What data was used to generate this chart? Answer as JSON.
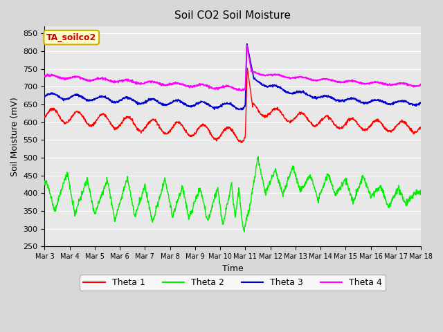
{
  "title": "Soil CO2 Soil Moisture",
  "xlabel": "Time",
  "ylabel": "Soil Moisture (mV)",
  "ylim": [
    250,
    870
  ],
  "yticks": [
    250,
    300,
    350,
    400,
    450,
    500,
    550,
    600,
    650,
    700,
    750,
    800,
    850
  ],
  "x_labels": [
    "Mar 3",
    "Mar 4",
    "Mar 5",
    "Mar 6",
    "Mar 7",
    "Mar 8",
    "Mar 9",
    "Mar 10",
    "Mar 11",
    "Mar 12",
    "Mar 13",
    "Mar 14",
    "Mar 15",
    "Mar 16",
    "Mar 17",
    "Mar 18"
  ],
  "annotation_text": "TA_soilco2",
  "annotation_bg": "#ffffcc",
  "annotation_border": "#ccaa00",
  "annotation_text_color": "#cc0000",
  "colors": {
    "theta1": "#ff0000",
    "theta2": "#00ee00",
    "theta3": "#0000cc",
    "theta4": "#ff00ff"
  },
  "bg_color": "#e8e8e8",
  "grid_color": "#ffffff",
  "legend_labels": [
    "Theta 1",
    "Theta 2",
    "Theta 3",
    "Theta 4"
  ],
  "fig_bg": "#d8d8d8"
}
